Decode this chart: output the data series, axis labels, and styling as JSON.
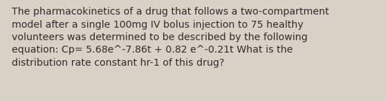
{
  "text": "The pharmacokinetics of a drug that follows a two-compartment\nmodel after a single 100mg IV bolus injection to 75 healthy\nvolunteers was determined to be described by the following\nequation: Cp= 5.68e^-7.86t + 0.82 e^-0.21t What is the\ndistribution rate constant hr-1 of this drug?",
  "background_color": "#d8d2c6",
  "text_color": "#2e2e2e",
  "font_size": 10.2,
  "fig_width": 5.58,
  "fig_height": 1.46
}
